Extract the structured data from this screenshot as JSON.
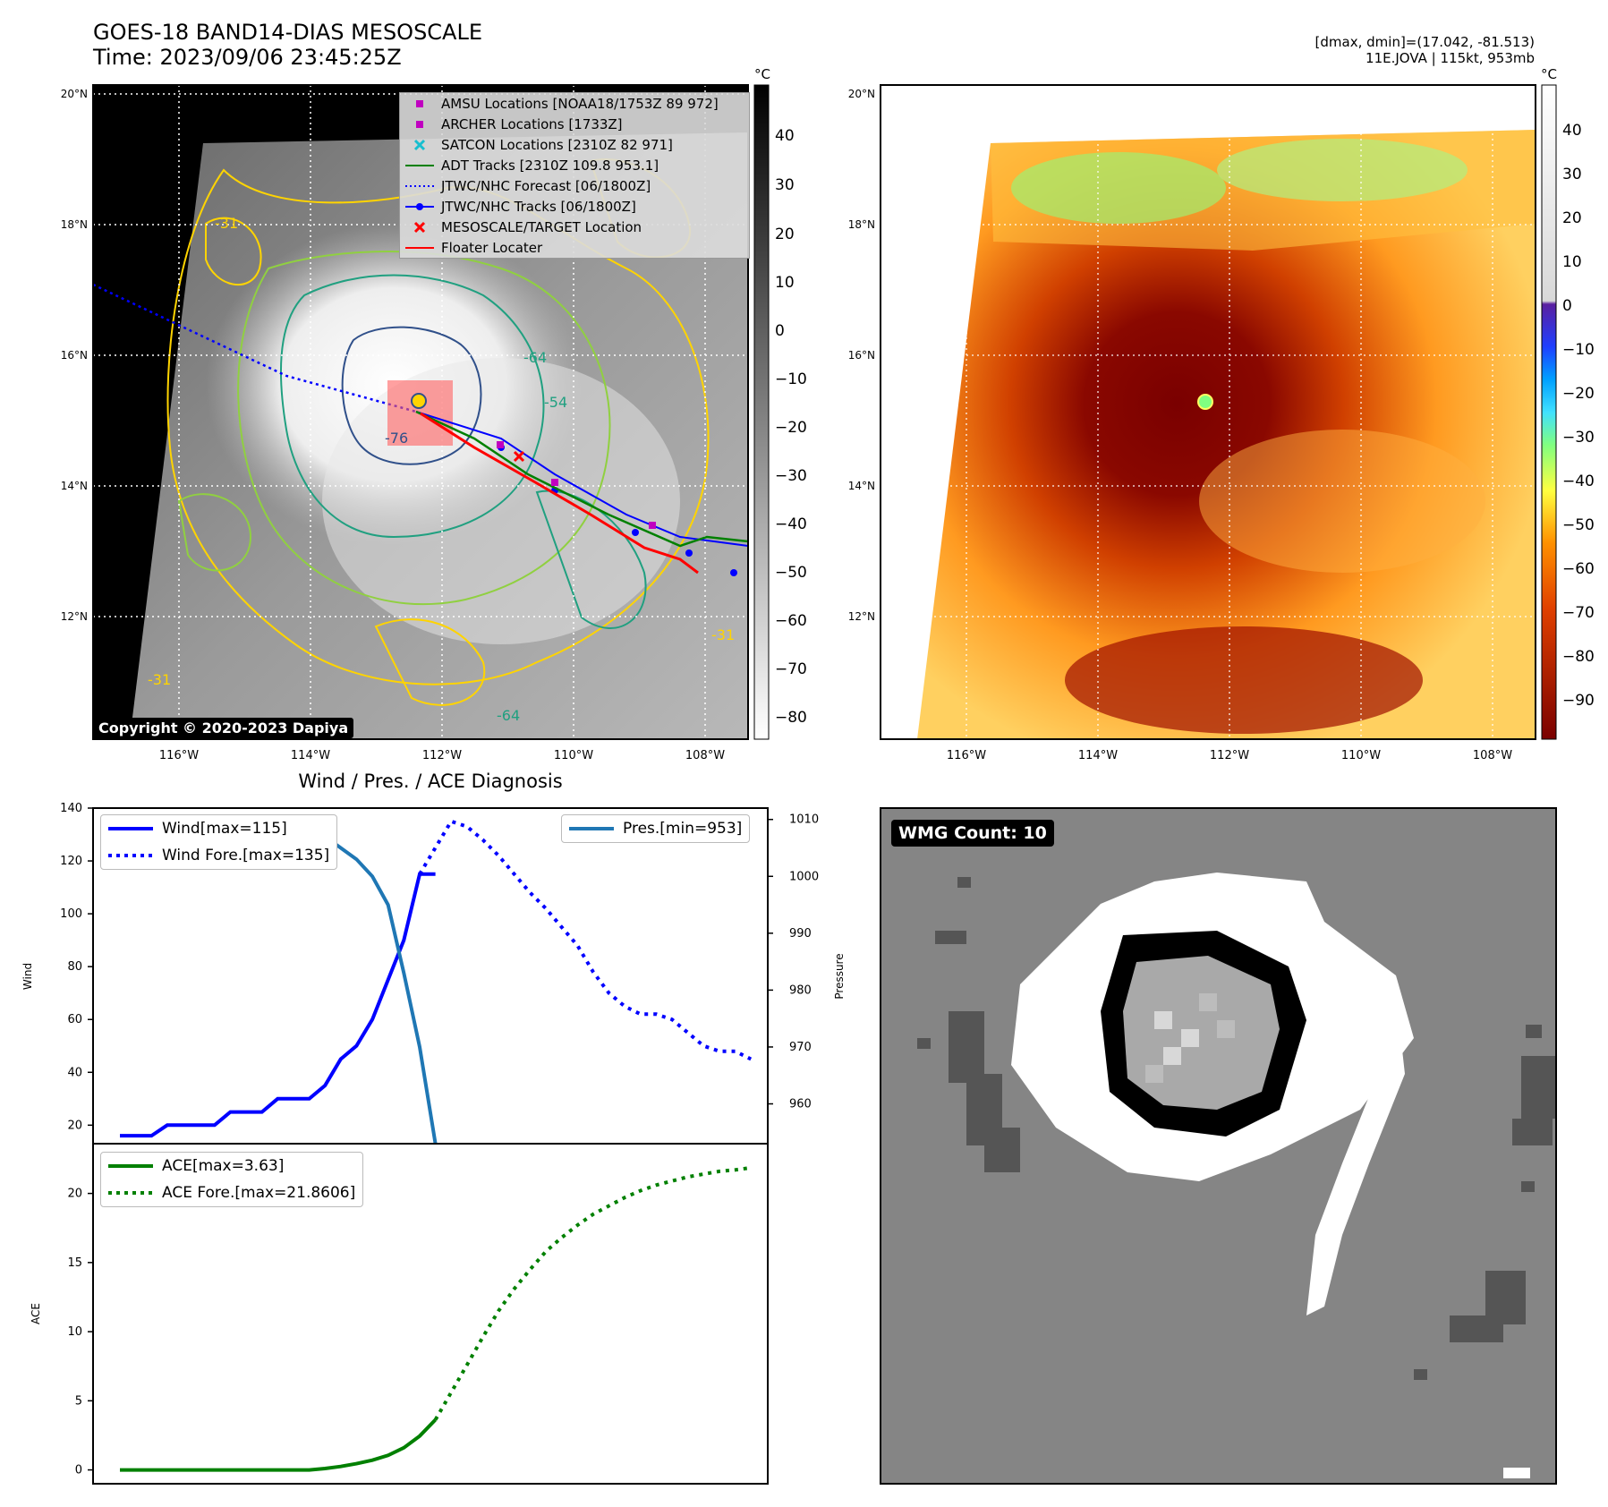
{
  "map1": {
    "title_line1": "GOES-18 BAND14-DIAS MESOSCALE",
    "title_line2": "Time: 2023/09/06 23:45:25Z",
    "copyright": "Copyright © 2020-2023 Dapiya",
    "colorbar_unit": "°C",
    "colorbar_ticks": [
      "40",
      "30",
      "20",
      "10",
      "0",
      "−10",
      "−20",
      "−30",
      "−40",
      "−50",
      "−60",
      "−70",
      "−80"
    ],
    "lat_labels": [
      "20°N",
      "18°N",
      "16°N",
      "14°N",
      "12°N"
    ],
    "lon_labels": [
      "116°W",
      "114°W",
      "112°W",
      "110°W",
      "108°W"
    ],
    "contour_labels": [
      "-76",
      "-64",
      "-54",
      "-31",
      "-31",
      "-64",
      "-31"
    ],
    "legend": [
      {
        "label": "AMSU Locations [NOAA18/1753Z 89 972]",
        "symbol": "square",
        "color": "#c000c0"
      },
      {
        "label": "ARCHER Locations [1733Z]",
        "symbol": "square",
        "color": "#c000c0"
      },
      {
        "label": "SATCON Locations [2310Z 82 971]",
        "symbol": "x",
        "color": "#17becf"
      },
      {
        "label": "ADT Tracks [2310Z 109.8 953.1]",
        "symbol": "line",
        "color": "#008000"
      },
      {
        "label": "JTWC/NHC Forecast [06/1800Z]",
        "symbol": "dotted",
        "color": "#0000ff"
      },
      {
        "label": "JTWC/NHC Tracks [06/1800Z]",
        "symbol": "dotline",
        "color": "#0000ff"
      },
      {
        "label": "MESOSCALE/TARGET Location",
        "symbol": "x",
        "color": "#ff0000"
      },
      {
        "label": "Floater Locater",
        "symbol": "line",
        "color": "#ff0000"
      }
    ]
  },
  "map2": {
    "info_line1": "[dmax, dmin]=(17.042, -81.513)",
    "info_line2": "11E.JOVA | 115kt, 953mb",
    "colorbar_unit": "°C",
    "colorbar_ticks": [
      "40",
      "30",
      "20",
      "10",
      "0",
      "−10",
      "−20",
      "−30",
      "−40",
      "−50",
      "−60",
      "−70",
      "−80",
      "−90"
    ],
    "lat_labels": [
      "20°N",
      "18°N",
      "16°N",
      "14°N",
      "12°N"
    ],
    "lon_labels": [
      "116°W",
      "114°W",
      "112°W",
      "110°W",
      "108°W"
    ]
  },
  "wmg": {
    "label": "WMG Count: 10"
  },
  "colors": {
    "wind": "#0000ff",
    "pres": "#1f77b4",
    "ace": "#008000"
  },
  "chart_data": [
    {
      "type": "line",
      "title": "Wind / Pres. / ACE Diagnosis",
      "ylabel": "Wind",
      "ylabel_right": "Pressure",
      "ylim": [
        13,
        140
      ],
      "ylim_right": [
        953,
        1012
      ],
      "xlim": [
        0,
        40.5
      ],
      "y_ticks": [
        "20",
        "40",
        "60",
        "80",
        "100",
        "120",
        "140"
      ],
      "y_ticks_right": [
        "960",
        "970",
        "980",
        "990",
        "1000",
        "1010"
      ],
      "legend_left": [
        "Wind[max=115]",
        "Wind Fore.[max=135]"
      ],
      "legend_right": [
        "Pres.[min=953]"
      ],
      "series": [
        {
          "name": "Wind[max=115]",
          "style": "solid",
          "axis": "left",
          "x": [
            0,
            1,
            2,
            3,
            4,
            5,
            6,
            7,
            8,
            9,
            10,
            11,
            12,
            13,
            14,
            15,
            16,
            17,
            18,
            19,
            20
          ],
          "values": [
            16,
            16,
            16,
            20,
            20,
            20,
            20,
            25,
            25,
            25,
            30,
            30,
            30,
            35,
            45,
            50,
            60,
            75,
            90,
            115,
            115
          ]
        },
        {
          "name": "Wind Fore.[max=135]",
          "style": "dotted",
          "axis": "left",
          "x": [
            19,
            20,
            21,
            22,
            23,
            24,
            25,
            26,
            27,
            28,
            29,
            30,
            31,
            32,
            33,
            34,
            35,
            36,
            37,
            38,
            39,
            40
          ],
          "values": [
            115,
            125,
            135,
            133,
            128,
            122,
            115,
            108,
            102,
            95,
            88,
            78,
            70,
            65,
            62,
            62,
            60,
            55,
            50,
            48,
            48,
            45
          ]
        },
        {
          "name": "Pres.[min=953]",
          "style": "solid",
          "axis": "right",
          "x": [
            0,
            1,
            2,
            3,
            4,
            5,
            6,
            7,
            8,
            9,
            10,
            11,
            12,
            13,
            14,
            15,
            16,
            17,
            18,
            19,
            20
          ],
          "values": [
            1010,
            1010,
            1010,
            1010,
            1010,
            1010,
            1010,
            1010,
            1010,
            1009,
            1009,
            1008,
            1008,
            1007,
            1005,
            1003,
            1000,
            995,
            983,
            970,
            953
          ]
        }
      ]
    },
    {
      "type": "line",
      "ylabel": "ACE",
      "ylim": [
        -1,
        23.6
      ],
      "xlim": [
        0,
        40.5
      ],
      "y_ticks": [
        "0",
        "5",
        "10",
        "15",
        "20"
      ],
      "legend": [
        "ACE[max=3.63]",
        "ACE Fore.[max=21.8606]"
      ],
      "series": [
        {
          "name": "ACE[max=3.63]",
          "style": "solid",
          "x": [
            0,
            1,
            2,
            3,
            4,
            5,
            6,
            7,
            8,
            9,
            10,
            11,
            12,
            13,
            14,
            15,
            16,
            17,
            18,
            19,
            20
          ],
          "values": [
            0,
            0,
            0,
            0,
            0,
            0,
            0,
            0,
            0,
            0,
            0,
            0,
            0,
            0.1,
            0.25,
            0.45,
            0.7,
            1.05,
            1.6,
            2.45,
            3.63
          ]
        },
        {
          "name": "ACE Fore.[max=21.8606]",
          "style": "dotted",
          "x": [
            20,
            21,
            22,
            23,
            24,
            25,
            26,
            27,
            28,
            29,
            30,
            31,
            32,
            33,
            34,
            35,
            36,
            37,
            38,
            39,
            40
          ],
          "values": [
            3.63,
            5.6,
            7.6,
            9.6,
            11.5,
            13.1,
            14.5,
            15.8,
            16.8,
            17.7,
            18.5,
            19.1,
            19.7,
            20.2,
            20.6,
            20.9,
            21.2,
            21.4,
            21.6,
            21.7,
            21.86
          ]
        }
      ]
    }
  ]
}
